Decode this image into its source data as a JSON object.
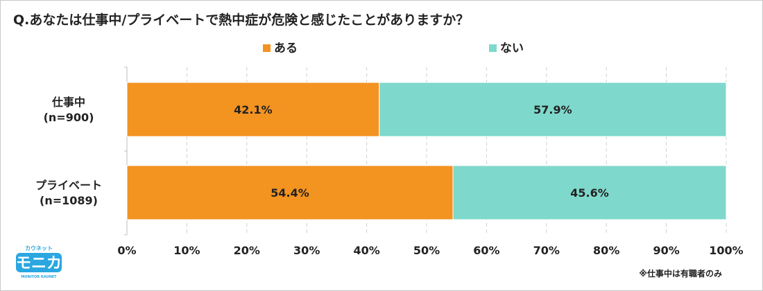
{
  "title": "Q.あなたは仕事中/プライベートで熱中症が危険と感じたことがありますか？",
  "footnote": "※仕事中は有職者のみ",
  "logo": {
    "small": "カウネット",
    "main": "モニカ",
    "sub": "MONITOR KAUNET"
  },
  "chart_data": {
    "type": "bar",
    "orientation": "horizontal",
    "stacked": true,
    "percent": true,
    "categories": [
      {
        "label": "仕事中",
        "n": "(n=900)"
      },
      {
        "label": "プライベート",
        "n": "(n=1089)"
      }
    ],
    "series": [
      {
        "name": "ある",
        "color": "#f39320",
        "values": [
          42.1,
          54.4
        ],
        "labels": [
          "42.1%",
          "54.4%"
        ]
      },
      {
        "name": "ない",
        "color": "#7fd8cc",
        "values": [
          57.9,
          45.6
        ],
        "labels": [
          "57.9%",
          "45.6%"
        ]
      }
    ],
    "xlim": [
      0,
      100
    ],
    "xticks": [
      0,
      10,
      20,
      30,
      40,
      50,
      60,
      70,
      80,
      90,
      100
    ],
    "xtick_labels": [
      "0%",
      "10%",
      "20%",
      "30%",
      "40%",
      "50%",
      "60%",
      "70%",
      "80%",
      "90%",
      "100%"
    ],
    "grid": "vertical dashed",
    "legend": "top-center"
  }
}
